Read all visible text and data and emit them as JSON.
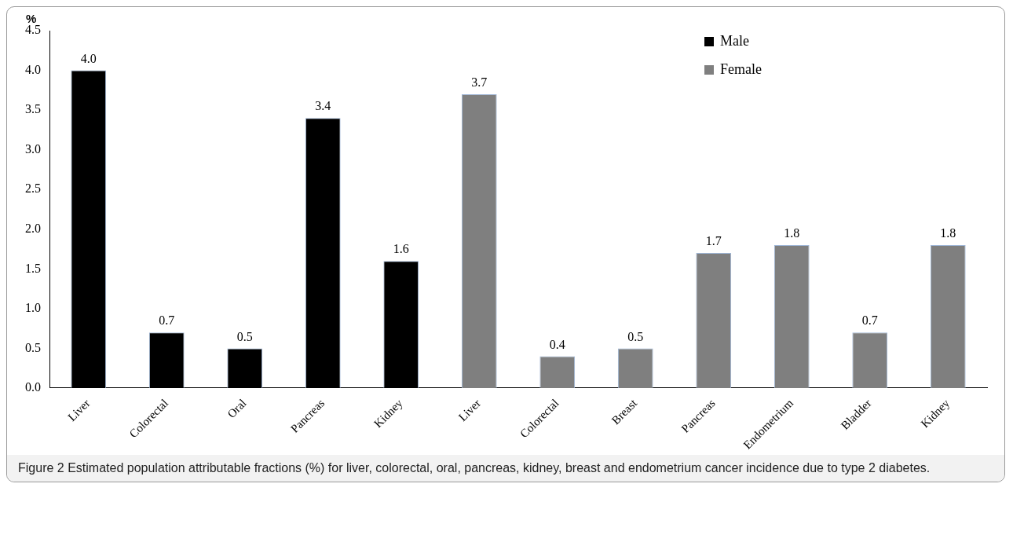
{
  "chart_data": {
    "type": "bar",
    "ylabel": "%",
    "categories": [
      "Liver",
      "Colorectal",
      "Oral",
      "Pancreas",
      "Kidney",
      "Liver",
      "Colorectal",
      "Breast",
      "Pancreas",
      "Endometrium",
      "Bladder",
      "Kidney"
    ],
    "series": [
      {
        "name": "Male",
        "color": "#000000",
        "values": [
          4.0,
          0.7,
          0.5,
          3.4,
          1.6,
          null,
          null,
          null,
          null,
          null,
          null,
          null
        ],
        "value_labels": [
          "4.0",
          "0.7",
          "0.5",
          "3.4",
          "1.6",
          null,
          null,
          null,
          null,
          null,
          null,
          null
        ]
      },
      {
        "name": "Female",
        "color": "#7f7f7f",
        "values": [
          null,
          null,
          null,
          null,
          null,
          3.7,
          0.4,
          0.5,
          1.7,
          1.8,
          0.7,
          1.8
        ],
        "value_labels": [
          null,
          null,
          null,
          null,
          null,
          "3.7",
          "0.4",
          "0.5",
          "1.7",
          "1.8",
          "0.7",
          "1.8"
        ]
      }
    ],
    "ylim": [
      0,
      4.5
    ],
    "yticks": [
      {
        "value": 0,
        "label": "0.0"
      },
      {
        "value": 0.5,
        "label": "0.5"
      },
      {
        "value": 1,
        "label": "1.0"
      },
      {
        "value": 1.5,
        "label": "1.5"
      },
      {
        "value": 2,
        "label": "2.0"
      },
      {
        "value": 2.5,
        "label": "2.5"
      },
      {
        "value": 3,
        "label": "3.0"
      },
      {
        "value": 3.5,
        "label": "3.5"
      },
      {
        "value": 4,
        "label": "4.0"
      },
      {
        "value": 4.5,
        "label": "4.5"
      }
    ],
    "grid": false,
    "legend": "top right",
    "annotations": [
      "Figure 2 Estimated population attributable fractions (%) for liver, colorectal, oral, pancreas, kidney, breast and endometrium cancer incidence due to type 2 diabetes."
    ]
  }
}
